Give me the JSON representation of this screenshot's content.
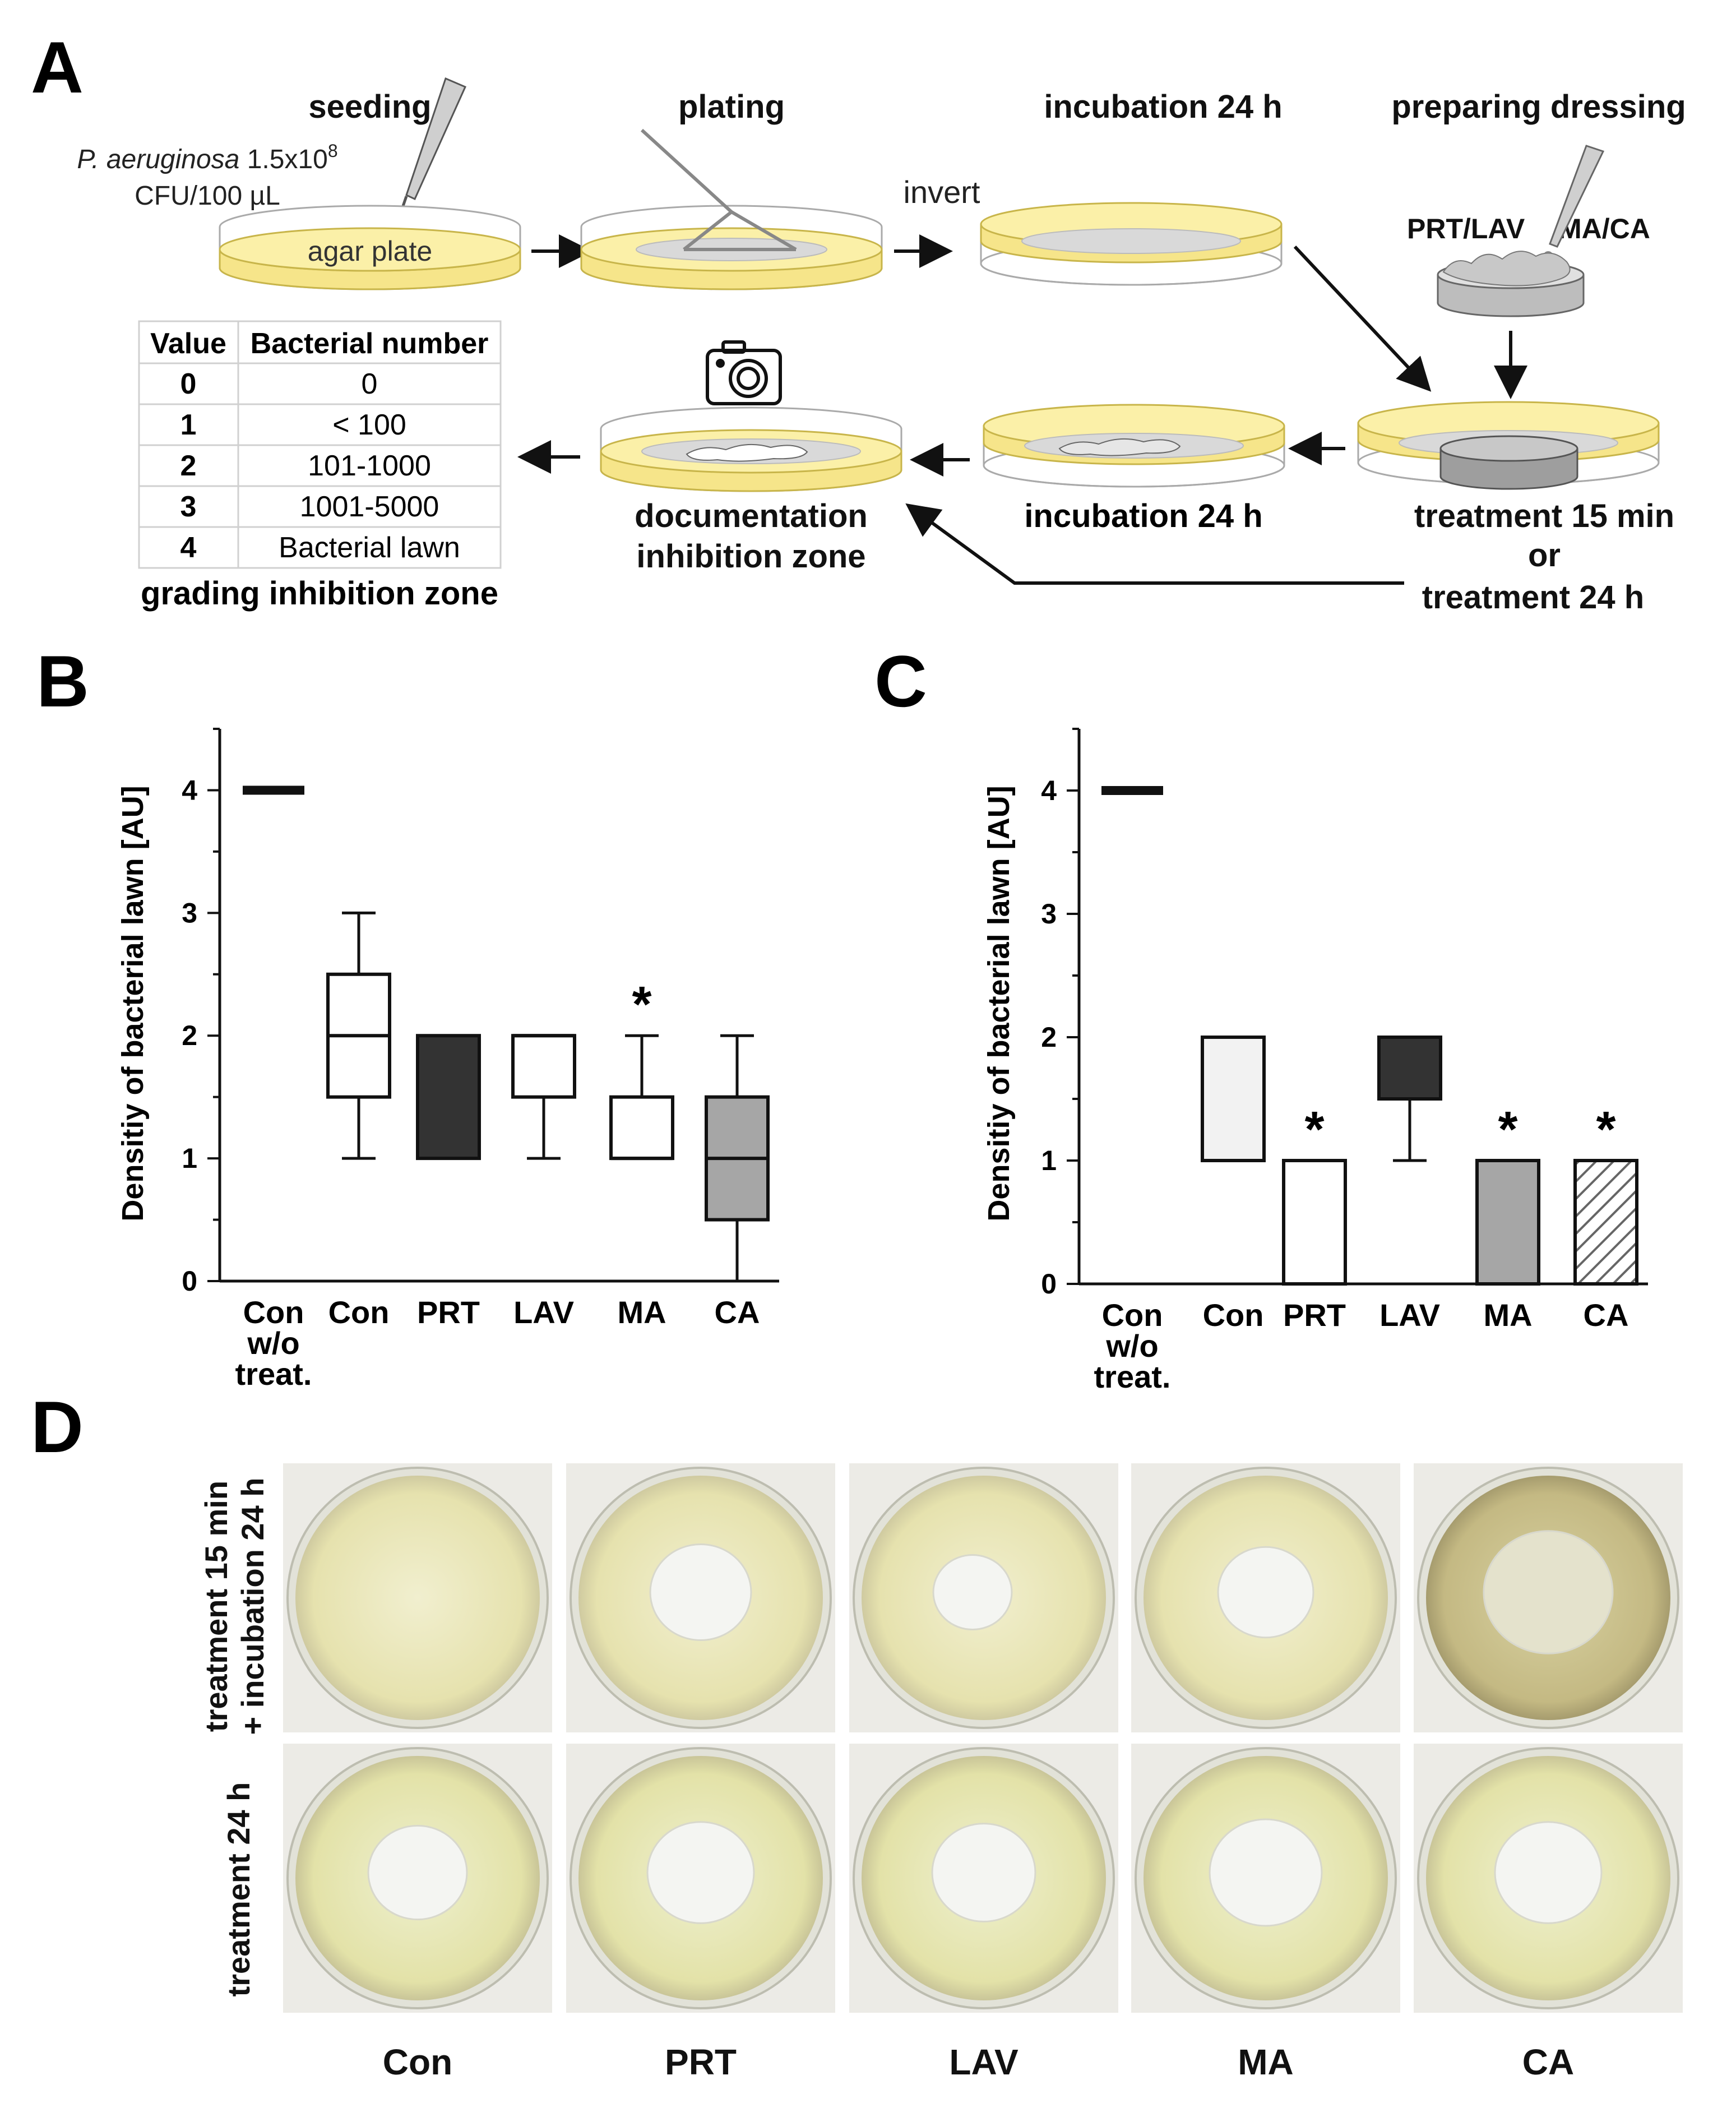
{
  "panels": {
    "a": "A",
    "b": "B",
    "c": "C",
    "d": "D"
  },
  "workflow": {
    "seeding": "seeding",
    "bacteria_species": "P. aeruginosa",
    "bacteria_conc": "1.5x10",
    "bacteria_exp": "8",
    "bacteria_unit": "CFU/100 µL",
    "agar_plate": "agar plate",
    "plating": "plating",
    "invert": "invert",
    "incubation_top": "incubation 24 h",
    "preparing_dressing": "preparing dressing",
    "dressing_left": "PRT/LAV",
    "dressing_right": "MA/CA",
    "treatment_15": "treatment 15 min",
    "or": "or",
    "treatment_24": "treatment 24 h",
    "incubation_bottom": "incubation 24 h",
    "documentation_1": "documentation",
    "documentation_2": "inhibition zone",
    "grading_caption": "grading inhibition zone"
  },
  "grading_table": {
    "headers": [
      "Value",
      "Bacterial number"
    ],
    "rows": [
      [
        "0",
        "0"
      ],
      [
        "1",
        "< 100"
      ],
      [
        "2",
        "101-1000"
      ],
      [
        "3",
        "1001-5000"
      ],
      [
        "4",
        "Bacterial lawn"
      ]
    ]
  },
  "chart_data": [
    {
      "type": "boxplot",
      "panel": "B",
      "ylabel": "Densitiy  of bacterial lawn [AU]",
      "ylim": [
        0,
        4.5
      ],
      "yticks": [
        "0",
        "1",
        "2",
        "3",
        "4"
      ],
      "categories": [
        "Con w/o treat.",
        "Con",
        "PRT",
        "LAV",
        "MA",
        "CA"
      ],
      "category_lines": [
        [
          "Con",
          "w/o",
          "treat."
        ],
        [
          "Con"
        ],
        [
          "PRT"
        ],
        [
          "LAV"
        ],
        [
          "MA"
        ],
        [
          "CA"
        ]
      ],
      "boxes": [
        {
          "line": 4
        },
        {
          "min": 1,
          "q1": 1.5,
          "median": 2,
          "q3": 2.5,
          "max": 3,
          "fill": "#ffffff"
        },
        {
          "q1": 1,
          "q3": 2,
          "fill": "#333333"
        },
        {
          "min": 1,
          "q1": 1.5,
          "median": 2,
          "q3": 2,
          "max": 2,
          "fill": "#ffffff"
        },
        {
          "min": 1,
          "q1": 1,
          "median": 1,
          "q3": 1.5,
          "max": 2,
          "fill": "#ffffff",
          "star": true
        },
        {
          "min": 0,
          "q1": 0.5,
          "median": 1,
          "q3": 1.5,
          "max": 2,
          "fill": "#a6a6a6"
        }
      ],
      "significance_marker": "*"
    },
    {
      "type": "boxplot",
      "panel": "C",
      "ylabel": "Densitiy  of bacterial lawn [AU]",
      "ylim": [
        0,
        4.5
      ],
      "yticks": [
        "0",
        "1",
        "2",
        "3",
        "4"
      ],
      "categories": [
        "Con w/o treat.",
        "Con",
        "PRT",
        "LAV",
        "MA",
        "CA"
      ],
      "category_lines": [
        [
          "Con",
          "w/o",
          "treat."
        ],
        [
          "Con"
        ],
        [
          "PRT"
        ],
        [
          "LAV"
        ],
        [
          "MA"
        ],
        [
          "CA"
        ]
      ],
      "boxes": [
        {
          "line": 4
        },
        {
          "q1": 1,
          "q3": 2,
          "fill": "#f2f2f2"
        },
        {
          "q1": 0,
          "q3": 1,
          "fill": "#ffffff",
          "star": true
        },
        {
          "min": 1,
          "q1": 1.5,
          "q3": 2,
          "max": 2,
          "fill": "#333333"
        },
        {
          "q1": 0,
          "q3": 1,
          "fill": "#a6a6a6",
          "star": true
        },
        {
          "q1": 0,
          "q3": 1,
          "fill": "hatch",
          "star": true
        }
      ],
      "significance_marker": "*"
    }
  ],
  "photos": {
    "row_labels": [
      [
        "treatment  15 min",
        "+ incubation 24 h"
      ],
      [
        "treatment  24 h"
      ]
    ],
    "columns": [
      "Con",
      "PRT",
      "LAV",
      "MA",
      "CA"
    ]
  }
}
